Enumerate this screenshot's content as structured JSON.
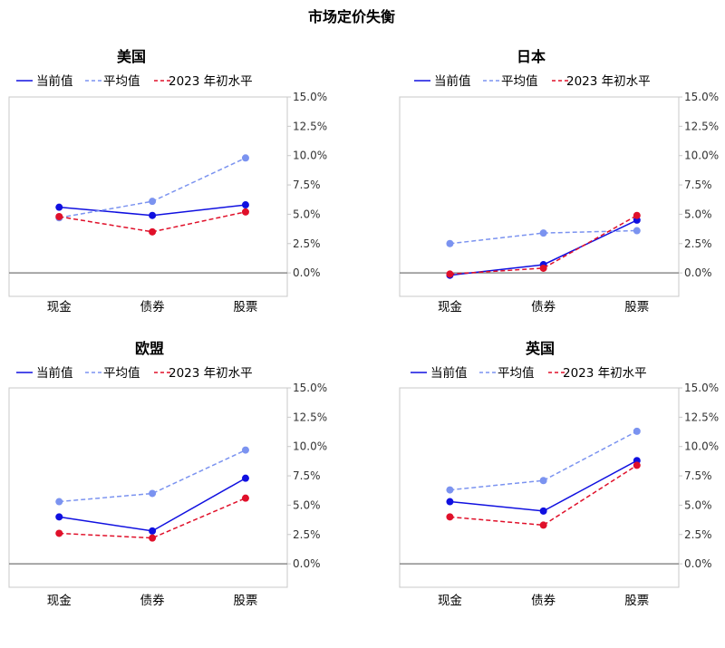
{
  "title": "市场定价失衡",
  "colors": {
    "current": "#1010e0",
    "average": "#7b93f0",
    "start2023": "#e0102a",
    "frame": "#c8c8c8",
    "zero_line": "#8c8c8c"
  },
  "chart_data": [
    {
      "type": "line",
      "title": "美国",
      "categories": [
        "现金",
        "债券",
        "股票"
      ],
      "ylim": [
        -0.02,
        0.15
      ],
      "yticks": [
        0.0,
        0.025,
        0.05,
        0.075,
        0.1,
        0.125,
        0.15
      ],
      "ytick_labels": [
        "0.0%",
        "2.5%",
        "5.0%",
        "7.5%",
        "10.0%",
        "12.5%",
        "15.0%"
      ],
      "y_axis_side": "right",
      "legend": "top",
      "series": [
        {
          "name": "当前值",
          "style": "solid",
          "values": [
            0.056,
            0.049,
            0.058
          ]
        },
        {
          "name": "平均值",
          "style": "dashed",
          "values": [
            0.047,
            0.061,
            0.098
          ]
        },
        {
          "name": "2023 年初水平",
          "style": "dashed",
          "values": [
            0.048,
            0.035,
            0.052
          ]
        }
      ]
    },
    {
      "type": "line",
      "title": "日本",
      "categories": [
        "现金",
        "债券",
        "股票"
      ],
      "ylim": [
        -0.02,
        0.15
      ],
      "yticks": [
        0.0,
        0.025,
        0.05,
        0.075,
        0.1,
        0.125,
        0.15
      ],
      "ytick_labels": [
        "0.0%",
        "2.5%",
        "5.0%",
        "7.5%",
        "10.0%",
        "12.5%",
        "15.0%"
      ],
      "y_axis_side": "right",
      "legend": "top",
      "series": [
        {
          "name": "当前值",
          "style": "solid",
          "values": [
            -0.002,
            0.007,
            0.045
          ]
        },
        {
          "name": "平均值",
          "style": "dashed",
          "values": [
            0.025,
            0.034,
            0.036
          ]
        },
        {
          "name": "2023 年初水平",
          "style": "dashed",
          "values": [
            -0.001,
            0.004,
            0.049
          ]
        }
      ]
    },
    {
      "type": "line",
      "title": "欧盟",
      "categories": [
        "现金",
        "债券",
        "股票"
      ],
      "ylim": [
        -0.02,
        0.15
      ],
      "yticks": [
        0.0,
        0.025,
        0.05,
        0.075,
        0.1,
        0.125,
        0.15
      ],
      "ytick_labels": [
        "0.0%",
        "2.5%",
        "5.0%",
        "7.5%",
        "10.0%",
        "12.5%",
        "15.0%"
      ],
      "y_axis_side": "right",
      "legend": "top",
      "series": [
        {
          "name": "当前值",
          "style": "solid",
          "values": [
            0.04,
            0.028,
            0.073
          ]
        },
        {
          "name": "平均值",
          "style": "dashed",
          "values": [
            0.053,
            0.06,
            0.097
          ]
        },
        {
          "name": "2023 年初水平",
          "style": "dashed",
          "values": [
            0.026,
            0.022,
            0.056
          ]
        }
      ]
    },
    {
      "type": "line",
      "title": "英国",
      "categories": [
        "现金",
        "债券",
        "股票"
      ],
      "ylim": [
        -0.02,
        0.15
      ],
      "yticks": [
        0.0,
        0.025,
        0.05,
        0.075,
        0.1,
        0.125,
        0.15
      ],
      "ytick_labels": [
        "0.0%",
        "2.5%",
        "5.0%",
        "7.5%",
        "10.0%",
        "12.5%",
        "15.0%"
      ],
      "y_axis_side": "right",
      "legend": "top",
      "series": [
        {
          "name": "当前值",
          "style": "solid",
          "values": [
            0.053,
            0.045,
            0.088
          ]
        },
        {
          "name": "平均值",
          "style": "dashed",
          "values": [
            0.063,
            0.071,
            0.113
          ]
        },
        {
          "name": "2023 年初水平",
          "style": "dashed",
          "values": [
            0.04,
            0.033,
            0.084
          ]
        }
      ]
    }
  ]
}
